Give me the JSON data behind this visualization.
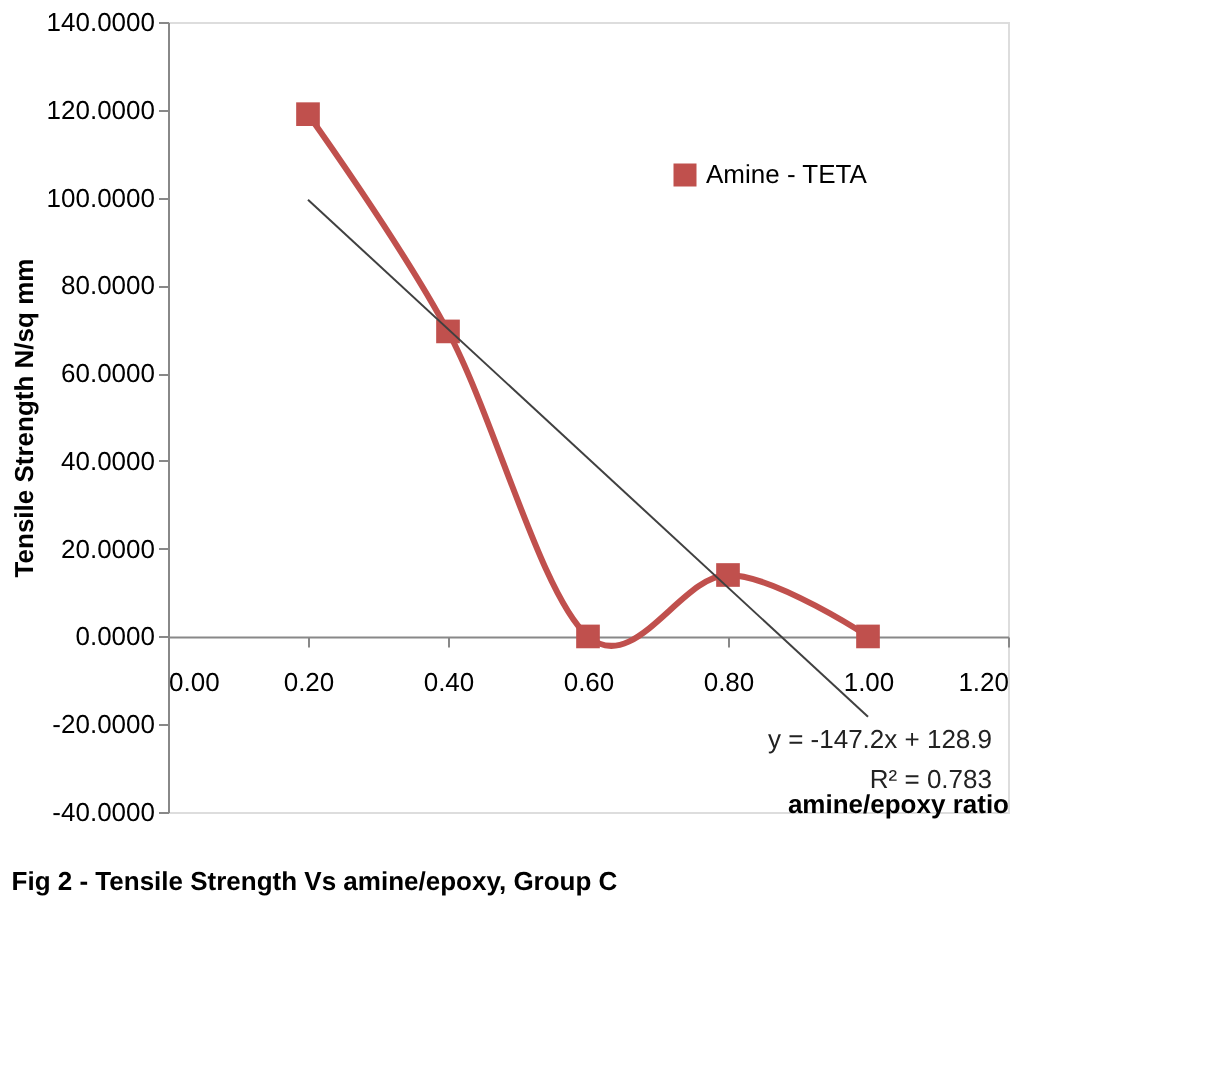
{
  "chart_data": {
    "type": "line",
    "title": "Fig 2 - Tensile Strength Vs amine/epoxy, Group C",
    "xlabel": "amine/epoxy ratio",
    "ylabel": "Tensile Strength N/sq mm",
    "x": [
      0.2,
      0.4,
      0.6,
      0.8,
      1.0
    ],
    "series": [
      {
        "name": "Amine - TETA",
        "color": "#c0504d",
        "values": [
          119,
          69.5,
          0,
          14,
          0
        ],
        "marker": "square"
      },
      {
        "type": "line",
        "color": "#404040",
        "x": [
          0.2,
          1.0
        ],
        "values": [
          99.5,
          -18.3
        ],
        "marker": "none"
      }
    ],
    "annotations": [
      "y = -147.2x + 128.9",
      "R² = 0.783"
    ],
    "xlim": [
      0,
      1.2
    ],
    "ylim": [
      -40,
      140
    ],
    "xticks": [
      {
        "value": 0,
        "label": "0.00"
      },
      {
        "value": 0.2,
        "label": "0.20"
      },
      {
        "value": 0.4,
        "label": "0.40"
      },
      {
        "value": 0.6,
        "label": "0.60"
      },
      {
        "value": 0.8,
        "label": "0.80"
      },
      {
        "value": 1.0,
        "label": "1.00"
      },
      {
        "value": 1.2,
        "label": "1.20"
      }
    ],
    "yticks": [
      {
        "value": -40,
        "label": "-40.0000"
      },
      {
        "value": -20,
        "label": "-20.0000"
      },
      {
        "value": 0,
        "label": "0.0000"
      },
      {
        "value": 20,
        "label": "20.0000"
      },
      {
        "value": 40,
        "label": "40.0000"
      },
      {
        "value": 60,
        "label": "60.0000"
      },
      {
        "value": 80,
        "label": "80.0000"
      },
      {
        "value": 100,
        "label": "100.0000"
      },
      {
        "value": 120,
        "label": "120.0000"
      },
      {
        "value": 140,
        "label": "140.0000"
      }
    ],
    "grid": false,
    "legend": "top right"
  }
}
